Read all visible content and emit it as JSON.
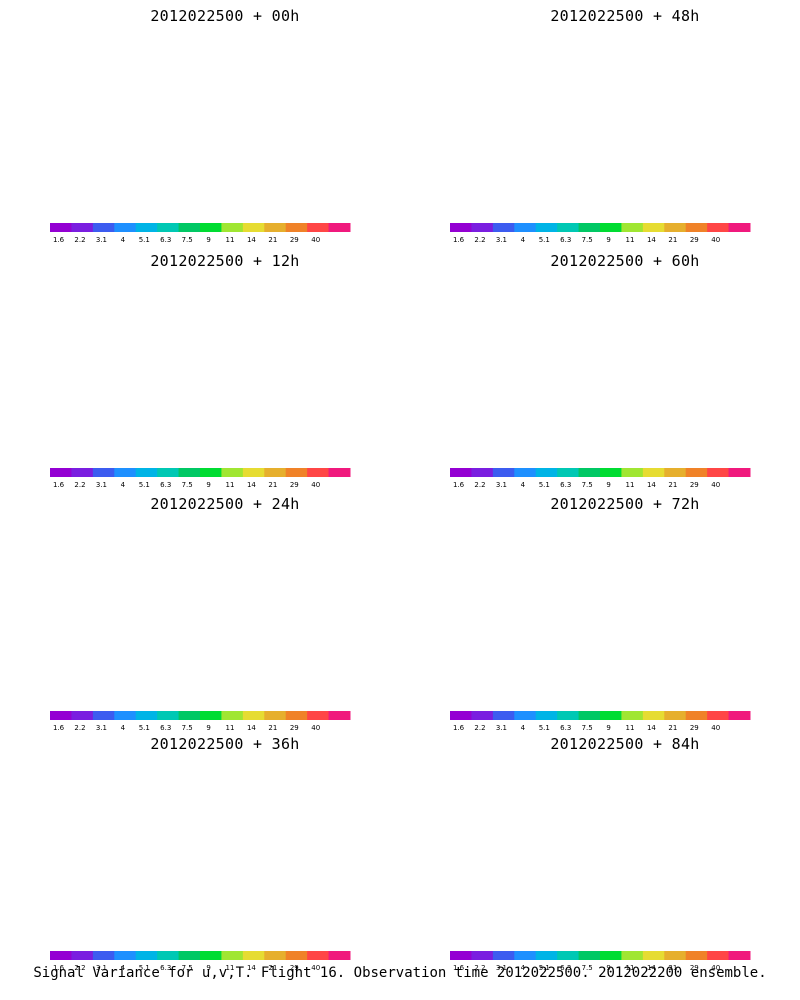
{
  "panels": [
    {
      "title": "2012022500 + 00h",
      "max_level": 10,
      "blob": "narrow"
    },
    {
      "title": "2012022500 + 12h",
      "max_level": 11,
      "blob": "narrow"
    },
    {
      "title": "2012022500 + 24h",
      "max_level": 11,
      "blob": "mid"
    },
    {
      "title": "2012022500 + 36h",
      "max_level": 10,
      "blob": "mid"
    },
    {
      "title": "2012022500 + 48h",
      "max_level": 10,
      "blob": "wide"
    },
    {
      "title": "2012022500 + 60h",
      "max_level": 10,
      "blob": "wide"
    },
    {
      "title": "2012022500 + 72h",
      "max_level": 10,
      "blob": "wide"
    },
    {
      "title": "2012022500 + 84h",
      "max_level": 11,
      "blob": "wide"
    }
  ],
  "colorbar": {
    "labels": [
      "1.6",
      "2.2",
      "3.1",
      "4",
      "5.1",
      "6.3",
      "7.5",
      "9",
      "11",
      "14",
      "21",
      "29",
      "40"
    ],
    "colors": [
      "#9400d3",
      "#7a1ee0",
      "#3c5cf0",
      "#1e90ff",
      "#00b4e6",
      "#00c8b4",
      "#00c864",
      "#00dc32",
      "#a0e632",
      "#e6dc32",
      "#e6af2d",
      "#f08228",
      "#ff4646",
      "#f0197d"
    ]
  },
  "footer": "Signal Variance for u,v,T. Flight 16. Observation time 2012022500. 2012022200 ensemble."
}
